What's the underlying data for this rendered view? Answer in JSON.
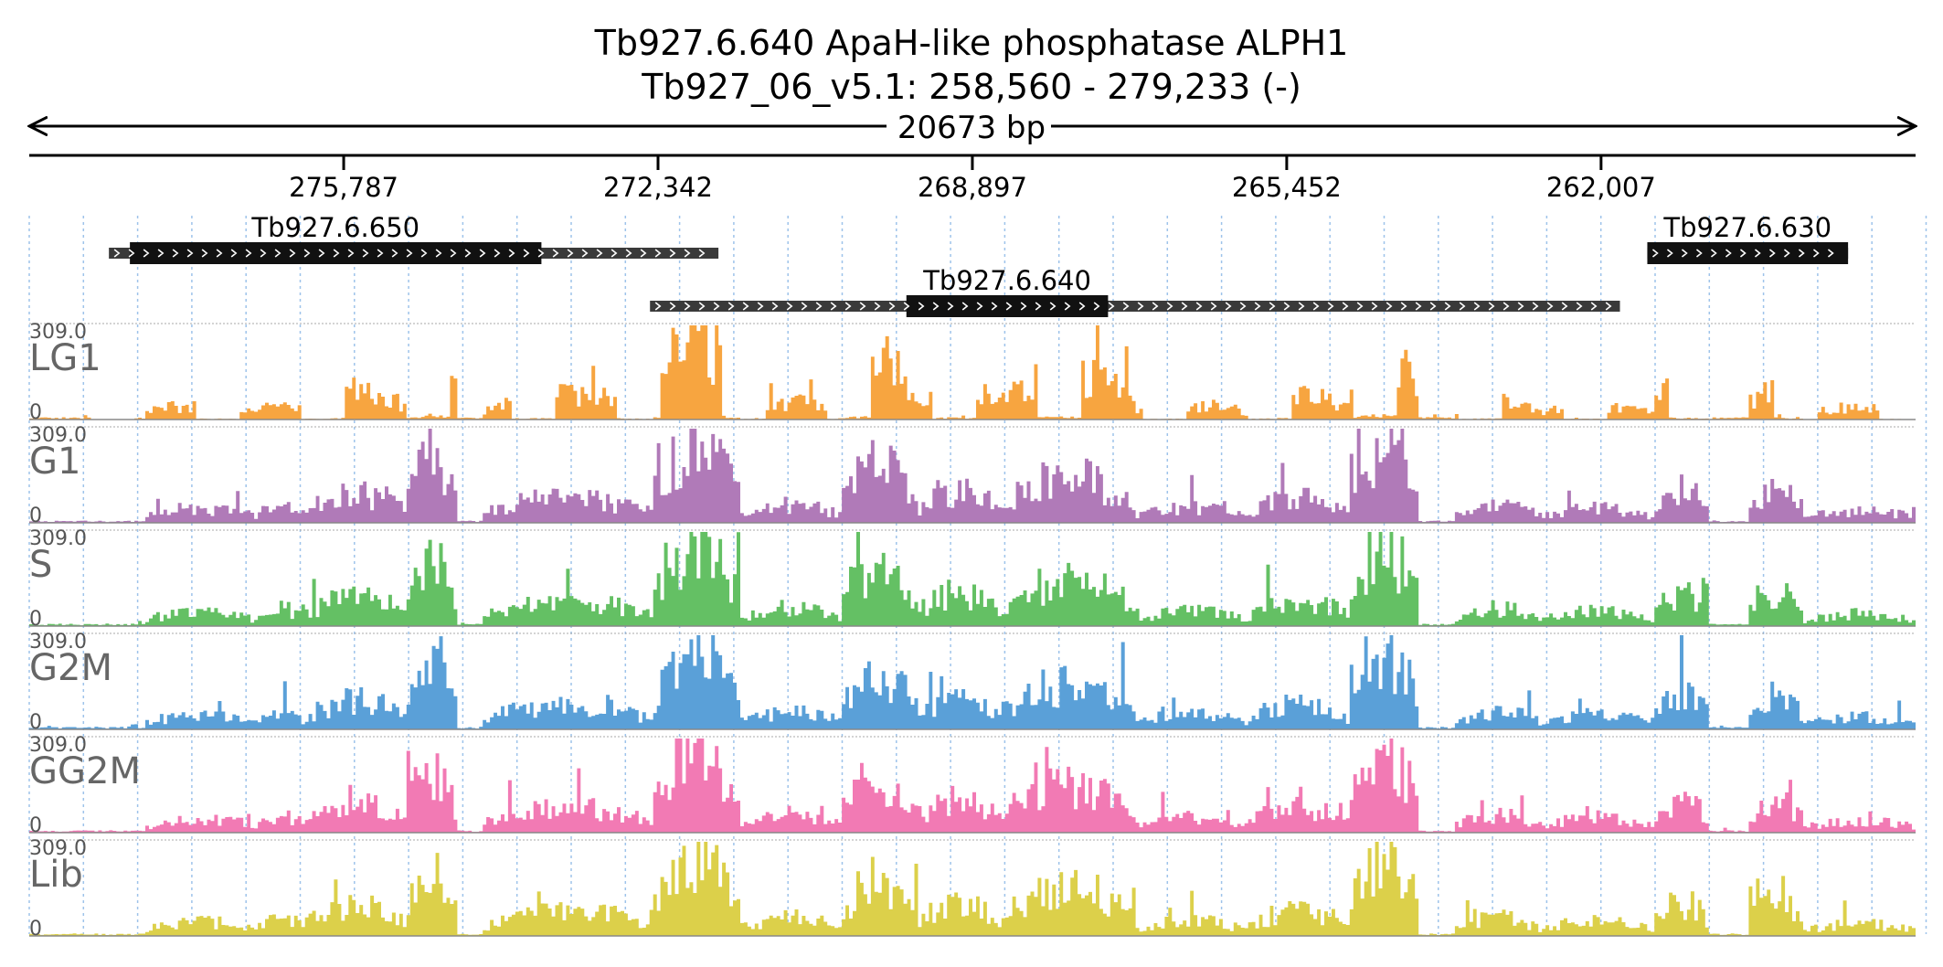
{
  "header": {
    "title_line1": "Tb927.6.640  ApaH-like phosphatase ALPH1",
    "title_line2": "Tb927_06_v5.1: 258,560 - 279,233 (-)",
    "span_label": "20673 bp"
  },
  "axis": {
    "start": 279233,
    "end": 258560,
    "ticks": [
      {
        "value": 275787,
        "label": "275,787"
      },
      {
        "value": 272342,
        "label": "272,342"
      },
      {
        "value": 268897,
        "label": "268,897"
      },
      {
        "value": 265452,
        "label": "265,452"
      },
      {
        "value": 262007,
        "label": "262,007"
      }
    ]
  },
  "genes": [
    {
      "id": "Tb927.6.650",
      "row": 0,
      "utr_start": 278360,
      "utr_end": 271680,
      "cds_start": 278130,
      "cds_end": 273620
    },
    {
      "id": "Tb927.6.640",
      "row": 1,
      "utr_start": 272430,
      "utr_end": 261800,
      "cds_start": 269620,
      "cds_end": 267410
    },
    {
      "id": "Tb927.6.630",
      "row": 0,
      "utr_start": 261500,
      "utr_end": 259300,
      "cds_start": 261500,
      "cds_end": 259300
    }
  ],
  "tracks": [
    {
      "name": "LG1",
      "color": "#f7a540",
      "max_label": "309.0",
      "zero_label": "0"
    },
    {
      "name": "G1",
      "color": "#b07ab8",
      "max_label": "309.0",
      "zero_label": "0"
    },
    {
      "name": "S",
      "color": "#64c064",
      "max_label": "309.0",
      "zero_label": "0"
    },
    {
      "name": "G2M",
      "color": "#5aa0d8",
      "max_label": "309.0",
      "zero_label": "0"
    },
    {
      "name": "GG2M",
      "color": "#f27ab4",
      "max_label": "309.0",
      "zero_label": "0"
    },
    {
      "name": "Lib",
      "color": "#dcd04a",
      "max_label": "309.0",
      "zero_label": "0"
    }
  ],
  "coverage_scale": {
    "max": 309.0
  }
}
